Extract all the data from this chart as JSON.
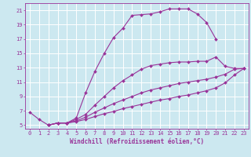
{
  "title": "",
  "xlabel": "Windchill (Refroidissement éolien,°C)",
  "ylabel": "",
  "bg_color": "#cce8f0",
  "grid_color": "#ffffff",
  "line_color": "#993399",
  "markersize": 2.0,
  "linewidth": 0.8,
  "xlim": [
    -0.5,
    23.5
  ],
  "ylim": [
    4.5,
    22.0
  ],
  "xticks": [
    0,
    1,
    2,
    3,
    4,
    5,
    6,
    7,
    8,
    9,
    10,
    11,
    12,
    13,
    14,
    15,
    16,
    17,
    18,
    19,
    20,
    21,
    22,
    23
  ],
  "yticks": [
    5,
    7,
    9,
    11,
    13,
    15,
    17,
    19,
    21
  ],
  "curve1_x": [
    0,
    1,
    2,
    3,
    4,
    5,
    6,
    7,
    8,
    9,
    10,
    11,
    12,
    13,
    14,
    15,
    16,
    17,
    18,
    19,
    20
  ],
  "curve1_y": [
    6.8,
    5.8,
    5.0,
    5.3,
    5.3,
    6.0,
    9.5,
    12.5,
    15.0,
    17.2,
    18.5,
    20.3,
    20.4,
    20.5,
    20.8,
    21.2,
    21.2,
    21.2,
    20.5,
    19.3,
    17.0
  ],
  "curve2_x": [
    2,
    3,
    4,
    5,
    6,
    7,
    8,
    9,
    10,
    11,
    12,
    13,
    14,
    15,
    16,
    17,
    18,
    19,
    20,
    21,
    22,
    23
  ],
  "curve2_y": [
    5.0,
    5.3,
    5.3,
    5.8,
    6.5,
    7.8,
    9.0,
    10.2,
    11.2,
    12.0,
    12.8,
    13.3,
    13.5,
    13.7,
    13.8,
    13.8,
    13.9,
    13.9,
    14.5,
    13.2,
    12.9,
    12.9
  ],
  "curve3_x": [
    2,
    3,
    4,
    5,
    6,
    7,
    8,
    9,
    10,
    11,
    12,
    13,
    14,
    15,
    16,
    17,
    18,
    19,
    20,
    21,
    22,
    23
  ],
  "curve3_y": [
    5.0,
    5.3,
    5.3,
    5.6,
    6.1,
    6.8,
    7.4,
    8.0,
    8.5,
    9.0,
    9.5,
    9.9,
    10.2,
    10.5,
    10.8,
    11.0,
    11.2,
    11.4,
    11.7,
    12.1,
    12.8,
    12.9
  ],
  "curve4_x": [
    2,
    3,
    4,
    5,
    6,
    7,
    8,
    9,
    10,
    11,
    12,
    13,
    14,
    15,
    16,
    17,
    18,
    19,
    20,
    21,
    22,
    23
  ],
  "curve4_y": [
    5.0,
    5.3,
    5.3,
    5.5,
    5.8,
    6.2,
    6.6,
    6.9,
    7.3,
    7.6,
    7.9,
    8.2,
    8.5,
    8.7,
    9.0,
    9.2,
    9.5,
    9.8,
    10.2,
    10.9,
    12.0,
    12.9
  ],
  "fontsize_xlabel": 5.5,
  "fontsize_tick": 5.0
}
